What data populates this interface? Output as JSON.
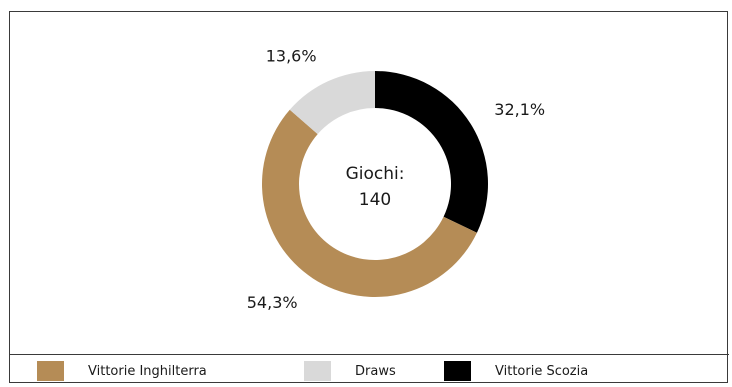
{
  "chart_data": {
    "type": "pie",
    "donut": true,
    "center_label": [
      "Giochi:",
      "140"
    ],
    "slices": [
      {
        "name": "Vittorie Scozia",
        "value": 32.1,
        "label": "32,1%",
        "color": "#000000"
      },
      {
        "name": "Vittorie Inghilterra",
        "value": 54.3,
        "label": "54,3%",
        "color": "#b58c56"
      },
      {
        "name": "Draws",
        "value": 13.6,
        "label": "13,6%",
        "color": "#d9d9d9"
      }
    ],
    "legend": {
      "placement": "bottom",
      "entries": [
        {
          "label": "Vittorie Inghilterra",
          "color": "#b58c56"
        },
        {
          "label": "Draws",
          "color": "#d9d9d9"
        },
        {
          "label": "Vittorie Scozia",
          "color": "#000000"
        }
      ]
    }
  }
}
